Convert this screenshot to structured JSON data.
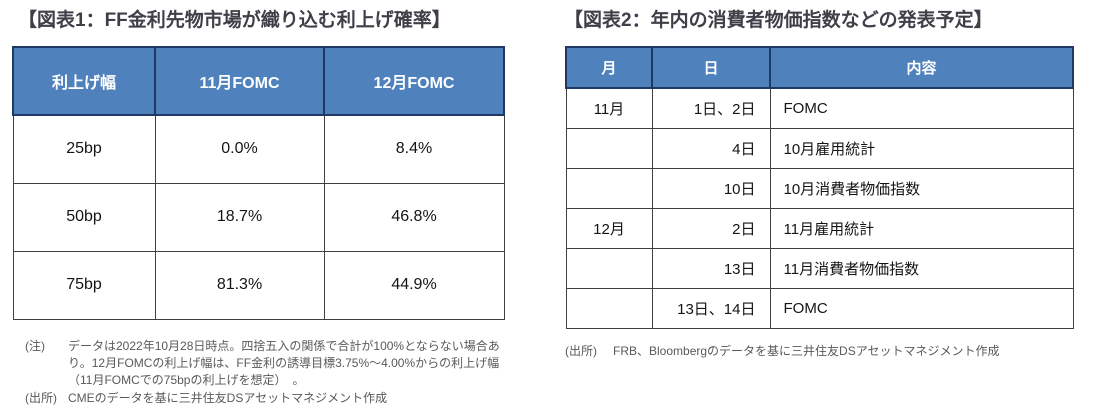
{
  "figure1": {
    "title": "【図表1：FF金利先物市場が織り込む利上げ確率】",
    "table": {
      "headers": [
        "利上げ幅",
        "11月FOMC",
        "12月FOMC"
      ],
      "rows": [
        [
          "25bp",
          "0.0%",
          "8.4%"
        ],
        [
          "50bp",
          "18.7%",
          "46.8%"
        ],
        [
          "75bp",
          "81.3%",
          "44.9%"
        ]
      ]
    },
    "notes": [
      {
        "label": "(注)",
        "text": "データは2022年10月28日時点。四捨五入の関係で合計が100%とならない場合あり。12月FOMCの利上げ幅は、FF金利の誘導目標3.75%～4.00%からの利上げ幅（11月FOMCでの75bpの利上げを想定）　。"
      },
      {
        "label": "(出所)",
        "text": "CMEのデータを基に三井住友DSアセットマネジメント作成"
      }
    ]
  },
  "figure2": {
    "title": "【図表2：年内の消費者物価指数などの発表予定】",
    "table": {
      "headers": [
        "月",
        "日",
        "内容"
      ],
      "rows": [
        {
          "month": "11月",
          "day": "1日、2日",
          "content": "FOMC"
        },
        {
          "month": "",
          "day": "4日",
          "content": "10月雇用統計"
        },
        {
          "month": "",
          "day": "10日",
          "content": "10月消費者物価指数"
        },
        {
          "month": "12月",
          "day": "2日",
          "content": "11月雇用統計"
        },
        {
          "month": "",
          "day": "13日",
          "content": "11月消費者物価指数"
        },
        {
          "month": "",
          "day": "13日、14日",
          "content": "FOMC"
        }
      ]
    },
    "notes": [
      {
        "label": "(出所)",
        "text": "FRB、Bloombergのデータを基に三井住友DSアセットマネジメント作成"
      }
    ]
  },
  "colors": {
    "header_bg": "#4F81BD",
    "header_border": "#1F3864",
    "cell_border": "#3F3F3F",
    "title_text": "#3F3F48",
    "note_text": "#595959",
    "header_text": "#FFFFFF"
  }
}
